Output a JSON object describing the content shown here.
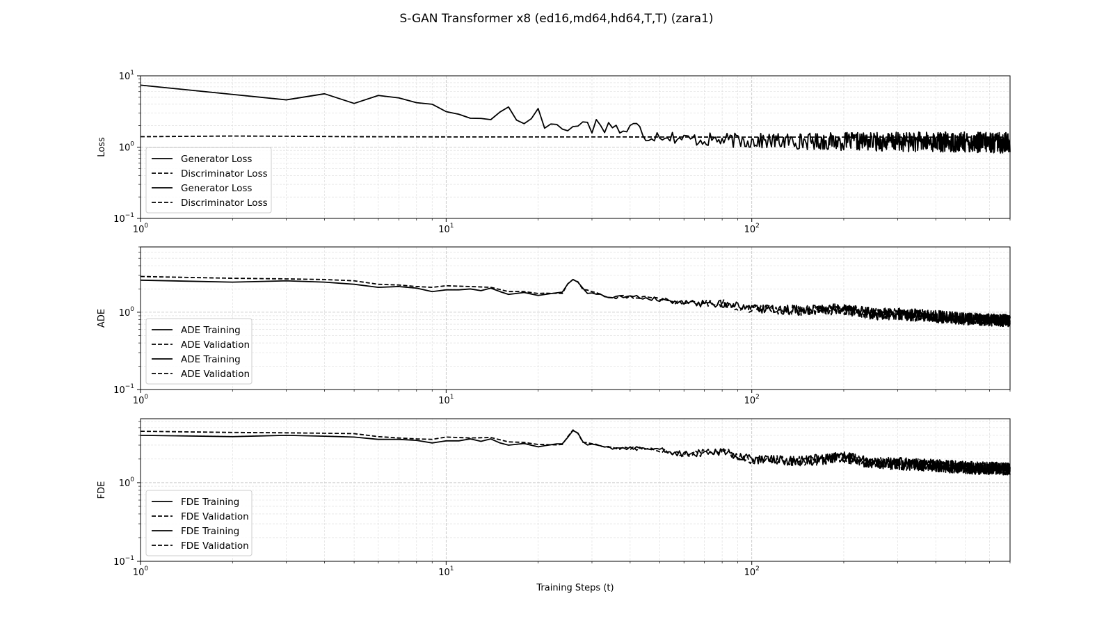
{
  "figure": {
    "title": "S-GAN Transformer x8 (ed16,md64,hd64,T,T) (zara1)"
  },
  "chart_data": [
    {
      "type": "line",
      "id": "loss",
      "xscale": "log",
      "yscale": "log",
      "xlim": [
        1,
        700
      ],
      "ylim": [
        0.1,
        10
      ],
      "xlabel": "",
      "ylabel": "Loss",
      "xticks": [
        {
          "base": "10",
          "exp": "0"
        },
        {
          "base": "10",
          "exp": "1"
        },
        {
          "base": "10",
          "exp": "2"
        }
      ],
      "yticks": [
        {
          "base": "10",
          "exp": "−1"
        },
        {
          "base": "10",
          "exp": "0"
        },
        {
          "base": "10",
          "exp": "1"
        }
      ],
      "grid": true,
      "legend_position": "lower-left",
      "legend": [
        "Generator Loss",
        "Discriminator Loss",
        "Generator Loss",
        "Discriminator Loss"
      ],
      "series": [
        {
          "name": "Generator Loss",
          "style": "solid",
          "anchors": [
            [
              1,
              7.4
            ],
            [
              3,
              4.6
            ],
            [
              4,
              5.6
            ],
            [
              5,
              4.1
            ],
            [
              6,
              5.3
            ],
            [
              7,
              4.9
            ],
            [
              8,
              4.2
            ],
            [
              9,
              4.0
            ],
            [
              10,
              3.1
            ],
            [
              11,
              2.9
            ],
            [
              12,
              2.6
            ],
            [
              13,
              2.45
            ],
            [
              14,
              2.5
            ],
            [
              15,
              3.0
            ],
            [
              16,
              3.9
            ],
            [
              17,
              2.6
            ],
            [
              18,
              2.1
            ],
            [
              19,
              2.5
            ],
            [
              20,
              3.6
            ],
            [
              21,
              2.0
            ],
            [
              22,
              2.4
            ],
            [
              23,
              1.85
            ],
            [
              25,
              1.8
            ],
            [
              28,
              2.1
            ],
            [
              29,
              2.4
            ],
            [
              30,
              1.8
            ],
            [
              31,
              2.2
            ],
            [
              33,
              1.9
            ],
            [
              35,
              2.1
            ],
            [
              38,
              1.6
            ],
            [
              40,
              1.9
            ],
            [
              42,
              2.0
            ],
            [
              45,
              1.4
            ],
            [
              50,
              1.5
            ],
            [
              60,
              1.3
            ],
            [
              80,
              1.25
            ],
            [
              100,
              1.22
            ],
            [
              200,
              1.2
            ],
            [
              400,
              1.18
            ],
            [
              700,
              1.15
            ]
          ],
          "noise": [
            0,
            0,
            0,
            0,
            0.06,
            0.08,
            0.1,
            0.12,
            0.14,
            0.15
          ]
        },
        {
          "name": "Discriminator Loss",
          "style": "dashed",
          "anchors": [
            [
              1,
              1.4
            ],
            [
              2,
              1.43
            ],
            [
              3,
              1.42
            ],
            [
              5,
              1.4
            ],
            [
              10,
              1.39
            ],
            [
              30,
              1.39
            ],
            [
              100,
              1.38
            ],
            [
              300,
              1.38
            ],
            [
              700,
              1.38
            ]
          ],
          "noise": [
            0,
            0,
            0,
            0,
            0,
            0,
            0,
            0,
            0,
            0
          ]
        }
      ]
    },
    {
      "type": "line",
      "id": "ade",
      "xscale": "log",
      "yscale": "log",
      "xlim": [
        1,
        700
      ],
      "ylim": [
        0.1,
        7
      ],
      "xlabel": "",
      "ylabel": "ADE",
      "xticks": [
        {
          "base": "10",
          "exp": "0"
        },
        {
          "base": "10",
          "exp": "1"
        },
        {
          "base": "10",
          "exp": "2"
        }
      ],
      "yticks": [
        {
          "base": "10",
          "exp": "−1"
        },
        {
          "base": "10",
          "exp": "0"
        }
      ],
      "grid": true,
      "legend_position": "lower-left",
      "legend": [
        "ADE Training",
        "ADE Validation",
        "ADE Training",
        "ADE Validation"
      ],
      "series": [
        {
          "name": "ADE Training",
          "style": "solid",
          "anchors": [
            [
              1,
              2.6
            ],
            [
              2,
              2.45
            ],
            [
              3,
              2.55
            ],
            [
              4,
              2.45
            ],
            [
              5,
              2.3
            ],
            [
              6,
              2.1
            ],
            [
              7,
              2.15
            ],
            [
              8,
              2.05
            ],
            [
              9,
              1.85
            ],
            [
              10,
              1.95
            ],
            [
              11,
              1.95
            ],
            [
              12,
              2.0
            ],
            [
              13,
              1.9
            ],
            [
              14,
              2.05
            ],
            [
              15,
              1.85
            ],
            [
              16,
              1.7
            ],
            [
              18,
              1.8
            ],
            [
              20,
              1.65
            ],
            [
              22,
              1.75
            ],
            [
              24,
              1.8
            ],
            [
              25,
              2.3
            ],
            [
              26,
              2.7
            ],
            [
              27,
              2.5
            ],
            [
              28,
              2.0
            ],
            [
              29,
              1.75
            ],
            [
              30,
              1.8
            ],
            [
              35,
              1.55
            ],
            [
              40,
              1.6
            ],
            [
              50,
              1.45
            ],
            [
              60,
              1.3
            ],
            [
              80,
              1.3
            ],
            [
              100,
              1.1
            ],
            [
              150,
              1.05
            ],
            [
              200,
              1.1
            ],
            [
              250,
              0.95
            ],
            [
              300,
              0.95
            ],
            [
              400,
              0.88
            ],
            [
              500,
              0.82
            ],
            [
              700,
              0.78
            ]
          ],
          "noise": [
            0,
            0,
            0,
            0,
            0,
            0.02,
            0.05,
            0.07,
            0.08,
            0.08
          ]
        },
        {
          "name": "ADE Validation",
          "style": "dashed",
          "anchors": [
            [
              1,
              2.9
            ],
            [
              2,
              2.75
            ],
            [
              3,
              2.7
            ],
            [
              4,
              2.65
            ],
            [
              5,
              2.55
            ],
            [
              6,
              2.3
            ],
            [
              7,
              2.25
            ],
            [
              8,
              2.15
            ],
            [
              9,
              2.1
            ],
            [
              10,
              2.2
            ],
            [
              12,
              2.15
            ],
            [
              14,
              2.1
            ],
            [
              16,
              1.85
            ],
            [
              18,
              1.85
            ],
            [
              20,
              1.75
            ],
            [
              24,
              1.75
            ],
            [
              25,
              2.3
            ],
            [
              26,
              2.7
            ],
            [
              27,
              2.5
            ],
            [
              28,
              2.0
            ],
            [
              30,
              1.8
            ],
            [
              35,
              1.55
            ],
            [
              40,
              1.6
            ],
            [
              50,
              1.45
            ],
            [
              60,
              1.3
            ],
            [
              80,
              1.3
            ],
            [
              100,
              1.1
            ],
            [
              150,
              1.05
            ],
            [
              200,
              1.1
            ],
            [
              250,
              0.95
            ],
            [
              300,
              0.95
            ],
            [
              400,
              0.88
            ],
            [
              500,
              0.82
            ],
            [
              700,
              0.78
            ]
          ],
          "noise": [
            0,
            0,
            0,
            0,
            0,
            0.02,
            0.05,
            0.07,
            0.08,
            0.08
          ]
        }
      ]
    },
    {
      "type": "line",
      "id": "fde",
      "xscale": "log",
      "yscale": "log",
      "xlim": [
        1,
        700
      ],
      "ylim": [
        0.1,
        6.5
      ],
      "xlabel": "Training Steps (t)",
      "ylabel": "FDE",
      "xticks": [
        {
          "base": "10",
          "exp": "0"
        },
        {
          "base": "10",
          "exp": "1"
        },
        {
          "base": "10",
          "exp": "2"
        }
      ],
      "yticks": [
        {
          "base": "10",
          "exp": "−1"
        },
        {
          "base": "10",
          "exp": "0"
        }
      ],
      "grid": true,
      "legend_position": "lower-left",
      "legend": [
        "FDE Training",
        "FDE Validation",
        "FDE Training",
        "FDE Validation"
      ],
      "series": [
        {
          "name": "FDE Training",
          "style": "solid",
          "anchors": [
            [
              1,
              4.0
            ],
            [
              2,
              3.85
            ],
            [
              3,
              4.0
            ],
            [
              4,
              3.9
            ],
            [
              5,
              3.8
            ],
            [
              6,
              3.55
            ],
            [
              7,
              3.55
            ],
            [
              8,
              3.45
            ],
            [
              9,
              3.2
            ],
            [
              10,
              3.4
            ],
            [
              11,
              3.4
            ],
            [
              12,
              3.6
            ],
            [
              13,
              3.35
            ],
            [
              14,
              3.6
            ],
            [
              15,
              3.2
            ],
            [
              16,
              3.0
            ],
            [
              18,
              3.15
            ],
            [
              20,
              2.85
            ],
            [
              22,
              3.05
            ],
            [
              24,
              3.1
            ],
            [
              25,
              3.8
            ],
            [
              26,
              4.6
            ],
            [
              27,
              4.2
            ],
            [
              28,
              3.3
            ],
            [
              29,
              3.0
            ],
            [
              30,
              3.1
            ],
            [
              35,
              2.75
            ],
            [
              40,
              2.75
            ],
            [
              50,
              2.6
            ],
            [
              60,
              2.3
            ],
            [
              80,
              2.5
            ],
            [
              100,
              1.95
            ],
            [
              150,
              1.9
            ],
            [
              200,
              2.1
            ],
            [
              250,
              1.75
            ],
            [
              300,
              1.75
            ],
            [
              400,
              1.65
            ],
            [
              500,
              1.55
            ],
            [
              700,
              1.5
            ]
          ],
          "noise": [
            0,
            0,
            0,
            0,
            0,
            0.02,
            0.05,
            0.07,
            0.08,
            0.08
          ]
        },
        {
          "name": "FDE Validation",
          "style": "dashed",
          "anchors": [
            [
              1,
              4.5
            ],
            [
              2,
              4.35
            ],
            [
              3,
              4.3
            ],
            [
              4,
              4.25
            ],
            [
              5,
              4.2
            ],
            [
              6,
              3.85
            ],
            [
              7,
              3.7
            ],
            [
              8,
              3.6
            ],
            [
              9,
              3.55
            ],
            [
              10,
              3.8
            ],
            [
              12,
              3.7
            ],
            [
              14,
              3.75
            ],
            [
              16,
              3.3
            ],
            [
              18,
              3.25
            ],
            [
              20,
              3.05
            ],
            [
              24,
              3.05
            ],
            [
              25,
              3.8
            ],
            [
              26,
              4.6
            ],
            [
              27,
              4.2
            ],
            [
              28,
              3.3
            ],
            [
              30,
              3.1
            ],
            [
              35,
              2.75
            ],
            [
              40,
              2.75
            ],
            [
              50,
              2.6
            ],
            [
              60,
              2.3
            ],
            [
              80,
              2.5
            ],
            [
              100,
              1.95
            ],
            [
              150,
              1.9
            ],
            [
              200,
              2.1
            ],
            [
              250,
              1.75
            ],
            [
              300,
              1.75
            ],
            [
              400,
              1.65
            ],
            [
              500,
              1.55
            ],
            [
              700,
              1.5
            ]
          ],
          "noise": [
            0,
            0,
            0,
            0,
            0,
            0.02,
            0.05,
            0.07,
            0.08,
            0.08
          ]
        }
      ]
    }
  ]
}
